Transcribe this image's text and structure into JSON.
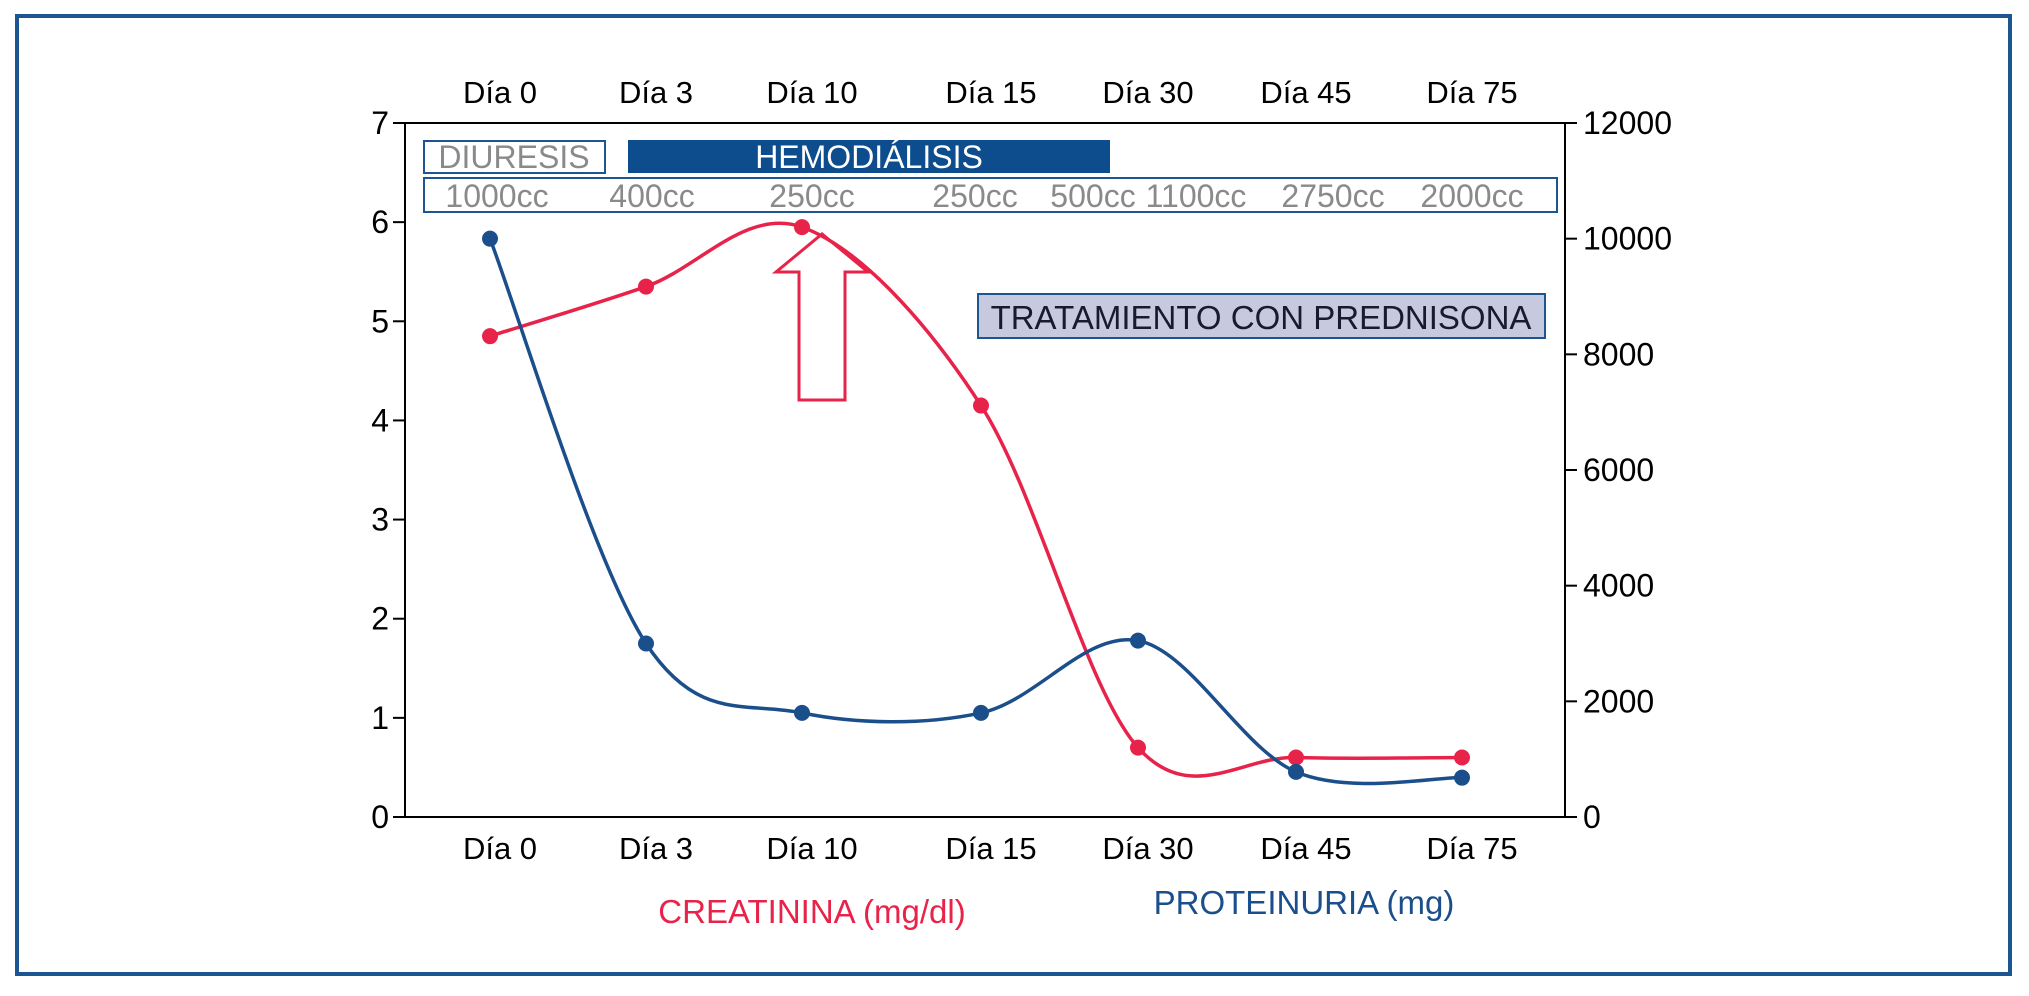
{
  "colors": {
    "frame": "#1b5592",
    "creatinine": "#e8234a",
    "proteinuria": "#1b4f8c",
    "axis": "#000000",
    "diuresis_text": "#8a8a8a",
    "hemodialysis_fill": "#0d4d8e",
    "prednisone_fill": "#c7cadf"
  },
  "chart_data": {
    "type": "line",
    "categories": [
      "Día 0",
      "Día 3",
      "Día 10",
      "Día 15",
      "Día 30",
      "Día 45",
      "Día 75"
    ],
    "y_left": {
      "ticks": [
        "0",
        "1",
        "2",
        "3",
        "4",
        "5",
        "6",
        "7"
      ],
      "ylim": [
        0,
        7
      ]
    },
    "y_right": {
      "ticks": [
        "0",
        "2000",
        "4000",
        "6000",
        "8000",
        "10000",
        "12000"
      ],
      "ylim": [
        0,
        12000
      ]
    },
    "series": [
      {
        "name": "CREATININA (mg/dl)",
        "axis": "left",
        "color": "#e8234a",
        "values": [
          4.85,
          5.35,
          5.95,
          4.15,
          0.7,
          0.6,
          0.6
        ]
      },
      {
        "name": "PROTEINURIA (mg)",
        "axis": "right",
        "color": "#1b4f8c",
        "values": [
          10000,
          3000,
          1800,
          1800,
          3050,
          780,
          680
        ]
      }
    ],
    "annotations": {
      "diuresis_label": "DIURESIS",
      "hemodialysis_label": "HEMODIÁLISIS",
      "diuresis_values": [
        "1000cc",
        "400cc",
        "250cc",
        "250cc",
        "500cc",
        "1100cc",
        "2750cc",
        "2000cc"
      ],
      "prednisone_label": "TRATAMIENTO CON PREDNISONA",
      "arrow": "up-arrow at Día 10"
    },
    "grid": false,
    "legend": "bottom"
  }
}
